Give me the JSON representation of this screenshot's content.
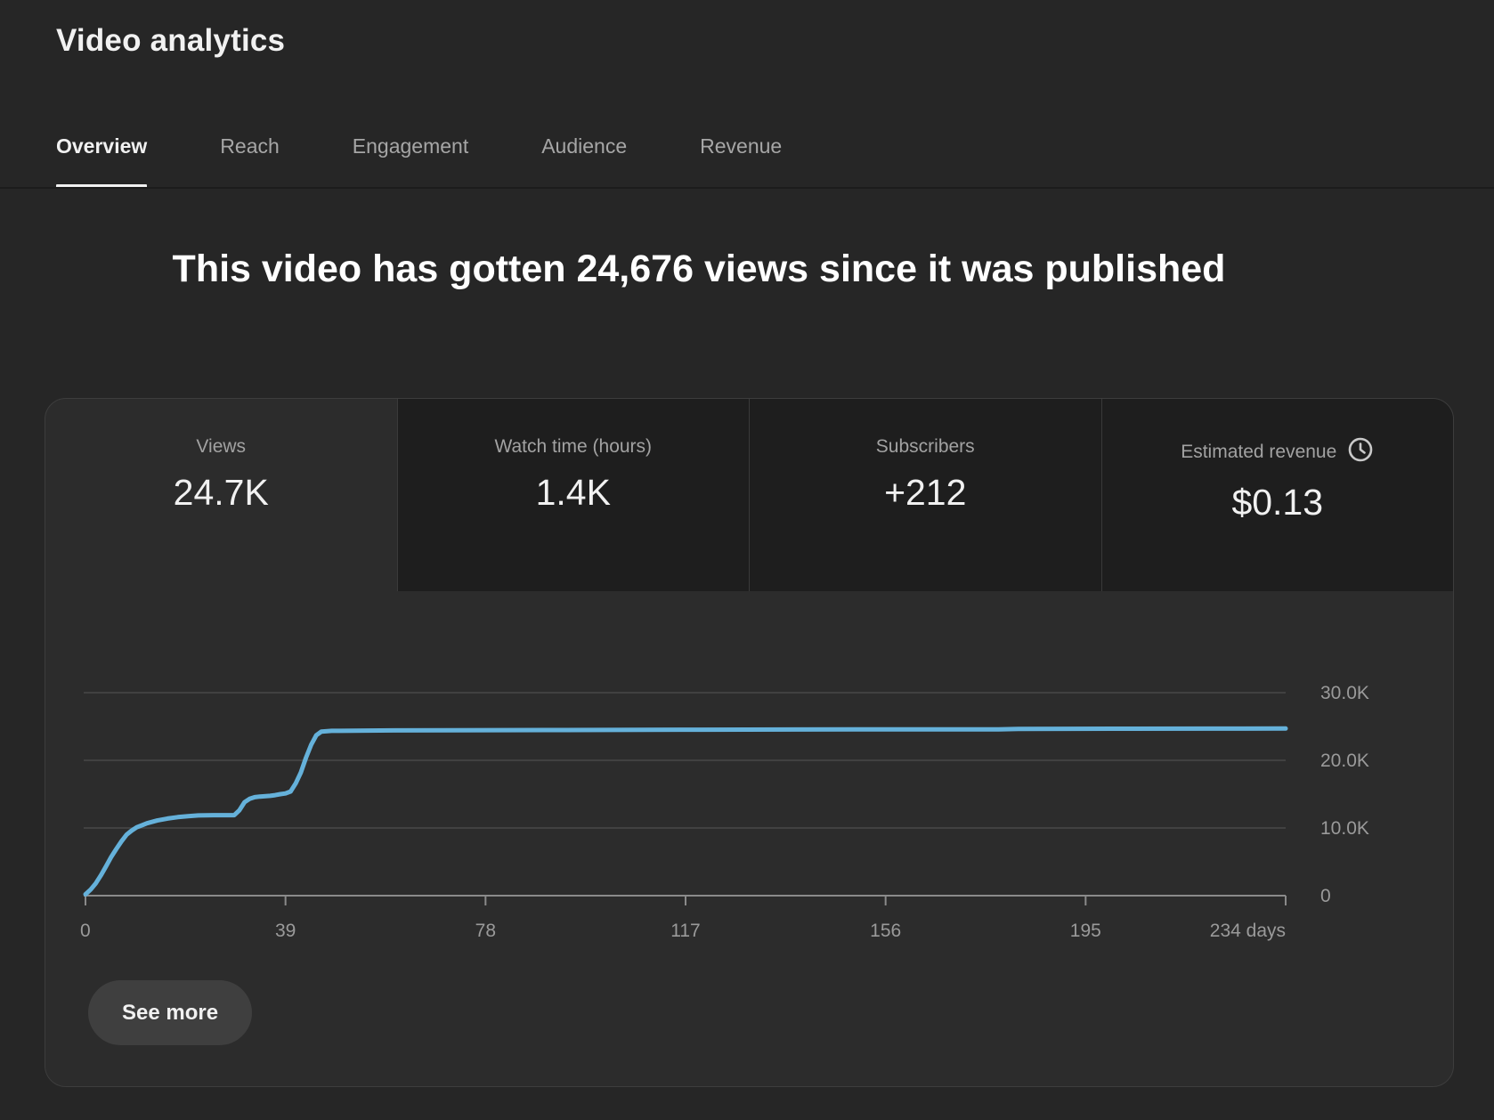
{
  "header": {
    "title": "Video analytics"
  },
  "tabs": [
    {
      "label": "Overview",
      "active": true
    },
    {
      "label": "Reach",
      "active": false
    },
    {
      "label": "Engagement",
      "active": false
    },
    {
      "label": "Audience",
      "active": false
    },
    {
      "label": "Revenue",
      "active": false
    }
  ],
  "headline": "This video has gotten 24,676 views since it was published",
  "metrics": [
    {
      "label": "Views",
      "value": "24.7K",
      "selected": true
    },
    {
      "label": "Watch time (hours)",
      "value": "1.4K",
      "selected": false
    },
    {
      "label": "Subscribers",
      "value": "+212",
      "selected": false
    },
    {
      "label": "Estimated revenue",
      "value": "$0.13",
      "selected": false,
      "icon": "clock-icon"
    }
  ],
  "see_more": {
    "label": "See more"
  },
  "colors": {
    "page_bg": "#262626",
    "card_bg": "#2c2c2c",
    "dim_cell_bg": "#1e1e1e",
    "line": "#65b1da",
    "grid": "#414141",
    "axis": "#8a8a8a",
    "text_primary": "#f1f1f1",
    "text_secondary": "#a2a2a2"
  },
  "chart_data": {
    "type": "line",
    "title": "Views over time",
    "xlabel": "days",
    "ylabel": "views",
    "x_range": [
      0,
      234
    ],
    "y_range": [
      0,
      30000
    ],
    "grid": true,
    "legend": "none",
    "x_ticks": [
      {
        "x": 0,
        "label": "0"
      },
      {
        "x": 39,
        "label": "39"
      },
      {
        "x": 78,
        "label": "78"
      },
      {
        "x": 117,
        "label": "117"
      },
      {
        "x": 156,
        "label": "156"
      },
      {
        "x": 195,
        "label": "195"
      },
      {
        "x": 234,
        "label": "234 days"
      }
    ],
    "y_ticks": [
      {
        "v": 0,
        "label": "0"
      },
      {
        "v": 10000,
        "label": "10.0K"
      },
      {
        "v": 20000,
        "label": "20.0K"
      },
      {
        "v": 30000,
        "label": "30.0K"
      }
    ],
    "series": [
      {
        "name": "Views",
        "points": [
          [
            0,
            200
          ],
          [
            1,
            900
          ],
          [
            2,
            1800
          ],
          [
            3,
            3000
          ],
          [
            4,
            4300
          ],
          [
            5,
            5700
          ],
          [
            6,
            6900
          ],
          [
            7,
            8000
          ],
          [
            8,
            9000
          ],
          [
            9,
            9600
          ],
          [
            10,
            10100
          ],
          [
            11,
            10400
          ],
          [
            12,
            10700
          ],
          [
            14,
            11100
          ],
          [
            16,
            11400
          ],
          [
            18,
            11600
          ],
          [
            20,
            11750
          ],
          [
            22,
            11850
          ],
          [
            25,
            11900
          ],
          [
            29,
            11900
          ],
          [
            30,
            12600
          ],
          [
            31,
            13800
          ],
          [
            32,
            14300
          ],
          [
            33,
            14550
          ],
          [
            34,
            14650
          ],
          [
            36,
            14750
          ],
          [
            37,
            14850
          ],
          [
            38,
            15000
          ],
          [
            39,
            15100
          ],
          [
            40,
            15400
          ],
          [
            41,
            16600
          ],
          [
            42,
            18200
          ],
          [
            43,
            20400
          ],
          [
            44,
            22300
          ],
          [
            45,
            23700
          ],
          [
            46,
            24250
          ],
          [
            48,
            24350
          ],
          [
            60,
            24420
          ],
          [
            90,
            24480
          ],
          [
            120,
            24520
          ],
          [
            150,
            24560
          ],
          [
            178,
            24580
          ],
          [
            182,
            24650
          ],
          [
            200,
            24670
          ],
          [
            220,
            24690
          ],
          [
            234,
            24700
          ]
        ]
      }
    ]
  }
}
